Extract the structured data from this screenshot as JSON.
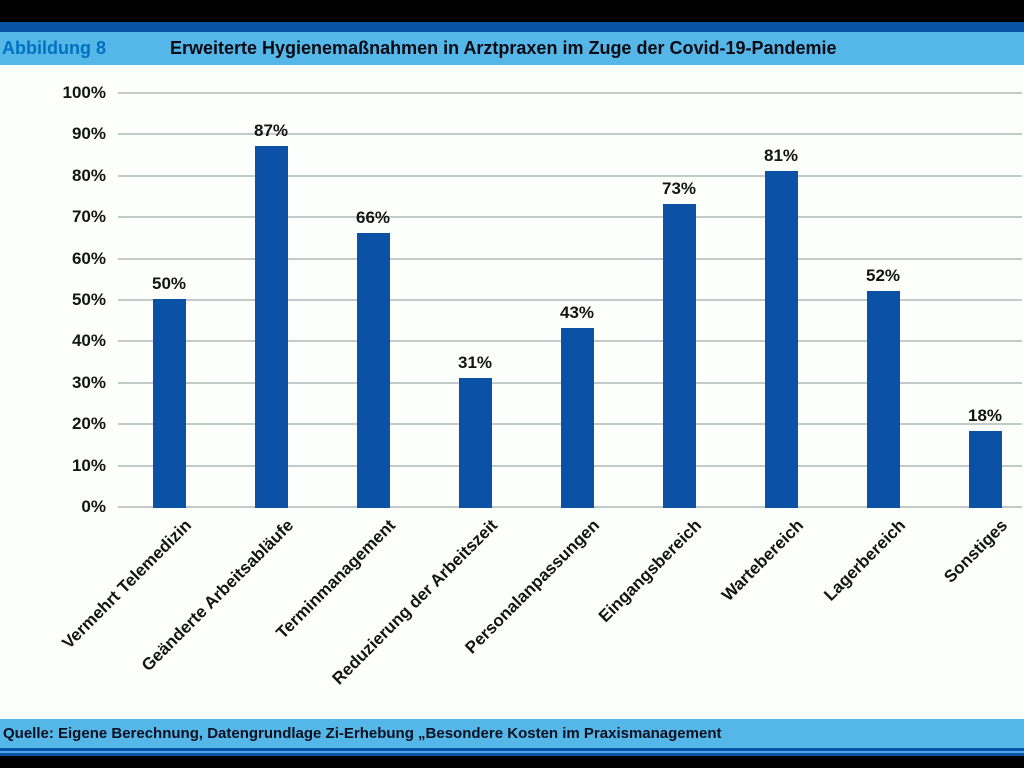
{
  "header": {
    "figure_label": "Abbildung 8",
    "title": "Erweiterte Hygienemaßnahmen in Arztpraxen im Zuge der Covid-19-Pandemie"
  },
  "footer": {
    "source": "Quelle: Eigene Berechnung, Datengrundlage Zi-Erhebung „Besondere Kosten im Praxismanagement"
  },
  "colors": {
    "bar": "#0b51a5",
    "band": "#55b7e8",
    "line": "#0853a6",
    "line_light": "#4aa8e0",
    "figure_label_text": "#0070c0",
    "gridline": "#c2cbca"
  },
  "chart_data": {
    "type": "bar",
    "title": "Erweiterte Hygienemaßnahmen in Arztpraxen im Zuge der Covid-19-Pandemie",
    "categories": [
      "Vermehrt Telemedizin",
      "Geänderte Arbeitsabläufe",
      "Terminmanagement",
      "Reduzierung der Arbeitszeit",
      "Personalanpassungen",
      "Eingangsbereich",
      "Wartebereich",
      "Lagerbereich",
      "Sonstiges"
    ],
    "values": [
      50,
      87,
      66,
      31,
      43,
      73,
      81,
      52,
      18
    ],
    "value_labels": [
      "50%",
      "87%",
      "66%",
      "31%",
      "43%",
      "73%",
      "81%",
      "52%",
      "18%"
    ],
    "xlabel": "",
    "ylabel": "",
    "ylim": [
      0,
      100
    ],
    "ytick_step": 10,
    "ytick_suffix": "%",
    "grid": true,
    "legend": false,
    "bar_orientation": "vertical"
  }
}
